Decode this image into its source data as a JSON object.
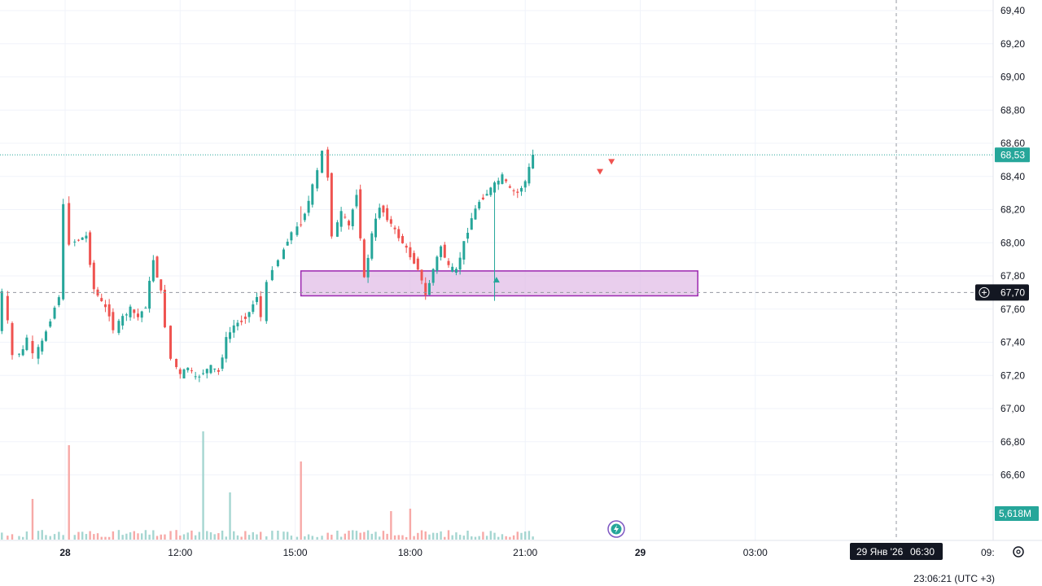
{
  "chart_data": {
    "type": "candlestick",
    "y_ticks": [
      "69,40",
      "69,20",
      "69,00",
      "68,80",
      "68,60",
      "68,40",
      "68,20",
      "68,00",
      "67,80",
      "67,60",
      "67,40",
      "67,20",
      "67,00",
      "66,80",
      "66,60"
    ],
    "y_tick_values": [
      69.4,
      69.2,
      69.0,
      68.8,
      68.6,
      68.4,
      68.2,
      68.0,
      67.8,
      67.6,
      67.4,
      67.2,
      67.0,
      66.8,
      66.6
    ],
    "ylim": [
      66.45,
      69.5
    ],
    "x_ticks": [
      {
        "label": "28",
        "bold": true,
        "t": 0
      },
      {
        "label": "12:00",
        "bold": false,
        "t": 3
      },
      {
        "label": "15:00",
        "bold": false,
        "t": 6
      },
      {
        "label": "18:00",
        "bold": false,
        "t": 9
      },
      {
        "label": "21:00",
        "bold": false,
        "t": 12
      },
      {
        "label": "29",
        "bold": true,
        "t": 15
      },
      {
        "label": "03:00",
        "bold": false,
        "t": 18
      }
    ],
    "x_tick_clipped": "09:",
    "last_price": {
      "label": "68,53",
      "value": 68.53
    },
    "crosshair_price": {
      "label": "67,70",
      "value": 67.7
    },
    "volume_label": "5,618M",
    "crosshair_time": {
      "date": "29 Янв '26",
      "time": "06:30"
    },
    "timezone_clock": "23:06:21 (UTC +3)",
    "zone": {
      "from_t": 6.15,
      "to_t": 16.5,
      "low": 67.68,
      "high": 67.83
    },
    "signals": [
      {
        "type": "down",
        "t": 13.95,
        "price": 68.43
      },
      {
        "type": "down",
        "t": 14.25,
        "price": 68.49
      },
      {
        "type": "up",
        "t": 11.25,
        "price": 67.78
      }
    ],
    "colors": {
      "up": "#26a69a",
      "down": "#ef5350",
      "zone_fill": "#e1bee7",
      "zone_stroke": "#9c27b0",
      "volume_up": "#a5d6d1",
      "volume_down": "#f7a9a7"
    },
    "price_path": [
      [
        -1.8,
        67.24
      ],
      [
        -1.65,
        67.48
      ],
      [
        -1.5,
        67.7
      ],
      [
        -1.38,
        67.52
      ],
      [
        -1.2,
        67.32
      ],
      [
        -1.0,
        67.35
      ],
      [
        -0.85,
        67.43
      ],
      [
        -0.7,
        67.32
      ],
      [
        -0.5,
        67.4
      ],
      [
        -0.05,
        67.68
      ],
      [
        0.1,
        68.22
      ],
      [
        0.25,
        68.0
      ],
      [
        0.45,
        68.02
      ],
      [
        0.65,
        68.04
      ],
      [
        0.85,
        67.72
      ],
      [
        1.05,
        67.64
      ],
      [
        1.25,
        67.57
      ],
      [
        1.4,
        67.48
      ],
      [
        1.6,
        67.55
      ],
      [
        1.8,
        67.6
      ],
      [
        2.0,
        67.55
      ],
      [
        2.2,
        67.62
      ],
      [
        2.4,
        67.9
      ],
      [
        2.6,
        67.7
      ],
      [
        2.75,
        67.5
      ],
      [
        2.9,
        67.3
      ],
      [
        3.1,
        67.2
      ],
      [
        3.3,
        67.25
      ],
      [
        3.5,
        67.18
      ],
      [
        3.7,
        67.22
      ],
      [
        3.9,
        67.25
      ],
      [
        4.1,
        67.22
      ],
      [
        4.3,
        67.42
      ],
      [
        4.5,
        67.5
      ],
      [
        4.7,
        67.53
      ],
      [
        4.9,
        67.58
      ],
      [
        5.1,
        67.68
      ],
      [
        5.25,
        67.55
      ],
      [
        5.4,
        67.75
      ],
      [
        5.55,
        67.85
      ],
      [
        5.7,
        67.9
      ],
      [
        5.9,
        68.02
      ],
      [
        6.05,
        68.06
      ],
      [
        6.25,
        68.12
      ],
      [
        6.45,
        68.25
      ],
      [
        6.7,
        68.43
      ],
      [
        6.85,
        68.55
      ],
      [
        6.95,
        68.4
      ],
      [
        7.1,
        68.05
      ],
      [
        7.3,
        68.18
      ],
      [
        7.5,
        68.1
      ],
      [
        7.7,
        68.3
      ],
      [
        7.9,
        67.78
      ],
      [
        8.1,
        68.05
      ],
      [
        8.3,
        68.22
      ],
      [
        8.5,
        68.15
      ],
      [
        8.7,
        68.07
      ],
      [
        8.9,
        68.0
      ],
      [
        9.1,
        67.92
      ],
      [
        9.3,
        67.85
      ],
      [
        9.5,
        67.68
      ],
      [
        9.7,
        67.84
      ],
      [
        9.9,
        67.98
      ],
      [
        10.1,
        67.85
      ],
      [
        10.3,
        67.83
      ],
      [
        10.5,
        68.0
      ],
      [
        10.7,
        68.15
      ],
      [
        10.9,
        68.25
      ],
      [
        11.1,
        68.3
      ],
      [
        11.3,
        68.35
      ],
      [
        11.5,
        68.4
      ],
      [
        11.7,
        68.32
      ],
      [
        11.9,
        68.3
      ],
      [
        12.1,
        68.37
      ],
      [
        12.3,
        68.53
      ]
    ]
  }
}
